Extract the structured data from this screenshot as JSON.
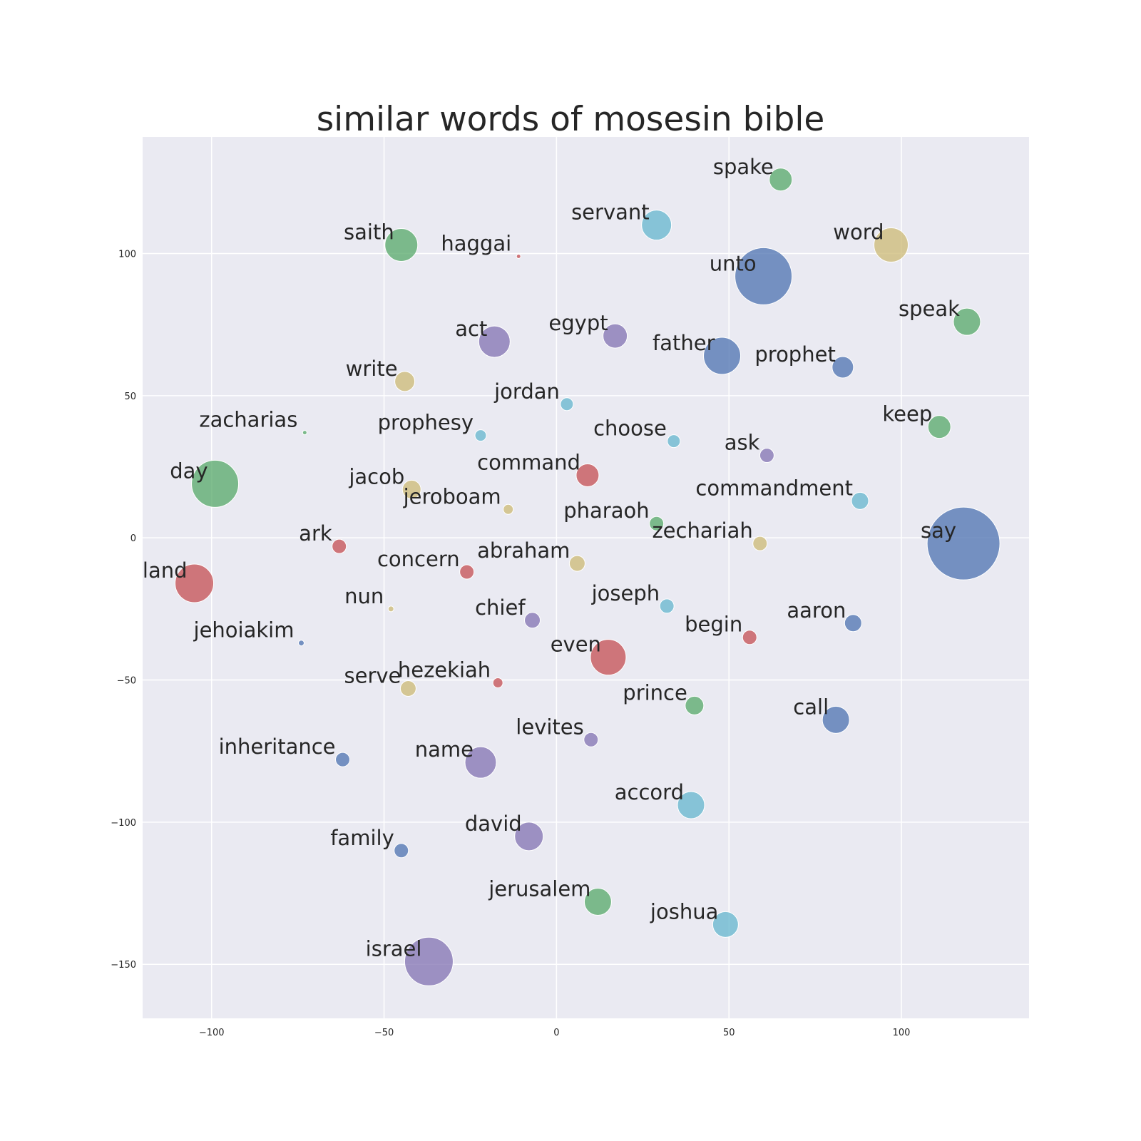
{
  "chart_data": {
    "type": "scatter",
    "title": "similar words of mosesin bible",
    "xlabel": "",
    "ylabel": "",
    "xlim": [
      -120,
      137
    ],
    "ylim": [
      -169,
      141
    ],
    "xticks": [
      -100,
      -50,
      0,
      50,
      100
    ],
    "yticks": [
      100,
      50,
      0,
      -50,
      -100,
      -150
    ],
    "xtick_labels": [
      "−100",
      "−50",
      "0",
      "50",
      "100"
    ],
    "ytick_labels": [
      "100",
      "50",
      "0",
      "−50",
      "−100",
      "−150"
    ],
    "grid": true,
    "legend": "none",
    "colors": {
      "blue": "#4c72b0",
      "green": "#55a868",
      "red": "#c44e52",
      "purple": "#8172b2",
      "yellow": "#ccb974",
      "cyan": "#64b5cd",
      "plot_background": "#eaeaf2"
    },
    "points": [
      {
        "word": "spake",
        "x": 65,
        "y": 126,
        "size": 16,
        "color": "green"
      },
      {
        "word": "servant",
        "x": 29,
        "y": 110,
        "size": 21,
        "color": "cyan"
      },
      {
        "word": "saith",
        "x": -45,
        "y": 103,
        "size": 23,
        "color": "green"
      },
      {
        "word": "haggai",
        "x": -11,
        "y": 99,
        "size": 3,
        "color": "red"
      },
      {
        "word": "word",
        "x": 97,
        "y": 103,
        "size": 24,
        "color": "yellow"
      },
      {
        "word": "unto",
        "x": 60,
        "y": 92,
        "size": 40,
        "color": "blue"
      },
      {
        "word": "speak",
        "x": 119,
        "y": 76,
        "size": 19,
        "color": "green"
      },
      {
        "word": "act",
        "x": -18,
        "y": 69,
        "size": 22,
        "color": "purple"
      },
      {
        "word": "egypt",
        "x": 17,
        "y": 71,
        "size": 17,
        "color": "purple"
      },
      {
        "word": "father",
        "x": 48,
        "y": 64,
        "size": 26,
        "color": "blue"
      },
      {
        "word": "prophet",
        "x": 83,
        "y": 60,
        "size": 15,
        "color": "blue"
      },
      {
        "word": "write",
        "x": -44,
        "y": 55,
        "size": 14,
        "color": "yellow"
      },
      {
        "word": "jordan",
        "x": 3,
        "y": 47,
        "size": 9,
        "color": "cyan"
      },
      {
        "word": "zacharias",
        "x": -73,
        "y": 37,
        "size": 3,
        "color": "green"
      },
      {
        "word": "prophesy",
        "x": -22,
        "y": 36,
        "size": 8,
        "color": "cyan"
      },
      {
        "word": "choose",
        "x": 34,
        "y": 34,
        "size": 9,
        "color": "cyan"
      },
      {
        "word": "keep",
        "x": 111,
        "y": 39,
        "size": 16,
        "color": "green"
      },
      {
        "word": "ask",
        "x": 61,
        "y": 29,
        "size": 10,
        "color": "purple"
      },
      {
        "word": "day",
        "x": -99,
        "y": 19,
        "size": 33,
        "color": "green"
      },
      {
        "word": "jacob",
        "x": -42,
        "y": 17,
        "size": 13,
        "color": "yellow"
      },
      {
        "word": "command",
        "x": 9,
        "y": 22,
        "size": 16,
        "color": "red"
      },
      {
        "word": "jeroboam",
        "x": -14,
        "y": 10,
        "size": 7,
        "color": "yellow"
      },
      {
        "word": "commandment",
        "x": 88,
        "y": 13,
        "size": 12,
        "color": "cyan"
      },
      {
        "word": "pharaoh",
        "x": 29,
        "y": 5,
        "size": 10,
        "color": "green"
      },
      {
        "word": "ark",
        "x": -63,
        "y": -3,
        "size": 10,
        "color": "red"
      },
      {
        "word": "zechariah",
        "x": 59,
        "y": -2,
        "size": 10,
        "color": "yellow"
      },
      {
        "word": "say",
        "x": 118,
        "y": -2,
        "size": 51,
        "color": "blue"
      },
      {
        "word": "land",
        "x": -105,
        "y": -16,
        "size": 27,
        "color": "red"
      },
      {
        "word": "concern",
        "x": -26,
        "y": -12,
        "size": 10,
        "color": "red"
      },
      {
        "word": "abraham",
        "x": 6,
        "y": -9,
        "size": 11,
        "color": "yellow"
      },
      {
        "word": "nun",
        "x": -48,
        "y": -25,
        "size": 4,
        "color": "yellow"
      },
      {
        "word": "chief",
        "x": -7,
        "y": -29,
        "size": 11,
        "color": "purple"
      },
      {
        "word": "joseph",
        "x": 32,
        "y": -24,
        "size": 10,
        "color": "cyan"
      },
      {
        "word": "aaron",
        "x": 86,
        "y": -30,
        "size": 12,
        "color": "blue"
      },
      {
        "word": "begin",
        "x": 56,
        "y": -35,
        "size": 10,
        "color": "red"
      },
      {
        "word": "jehoiakim",
        "x": -74,
        "y": -37,
        "size": 4,
        "color": "blue"
      },
      {
        "word": "even",
        "x": 15,
        "y": -42,
        "size": 25,
        "color": "red"
      },
      {
        "word": "serve",
        "x": -43,
        "y": -53,
        "size": 11,
        "color": "yellow"
      },
      {
        "word": "hezekiah",
        "x": -17,
        "y": -51,
        "size": 7,
        "color": "red"
      },
      {
        "word": "prince",
        "x": 40,
        "y": -59,
        "size": 13,
        "color": "green"
      },
      {
        "word": "call",
        "x": 81,
        "y": -64,
        "size": 19,
        "color": "blue"
      },
      {
        "word": "levites",
        "x": 10,
        "y": -71,
        "size": 10,
        "color": "purple"
      },
      {
        "word": "inheritance",
        "x": -62,
        "y": -78,
        "size": 10,
        "color": "blue"
      },
      {
        "word": "name",
        "x": -22,
        "y": -79,
        "size": 22,
        "color": "purple"
      },
      {
        "word": "accord",
        "x": 39,
        "y": -94,
        "size": 19,
        "color": "cyan"
      },
      {
        "word": "family",
        "x": -45,
        "y": -110,
        "size": 10,
        "color": "blue"
      },
      {
        "word": "david",
        "x": -8,
        "y": -105,
        "size": 20,
        "color": "purple"
      },
      {
        "word": "jerusalem",
        "x": 12,
        "y": -128,
        "size": 19,
        "color": "green"
      },
      {
        "word": "joshua",
        "x": 49,
        "y": -136,
        "size": 18,
        "color": "cyan"
      },
      {
        "word": "israel",
        "x": -37,
        "y": -149,
        "size": 34,
        "color": "purple"
      }
    ]
  }
}
